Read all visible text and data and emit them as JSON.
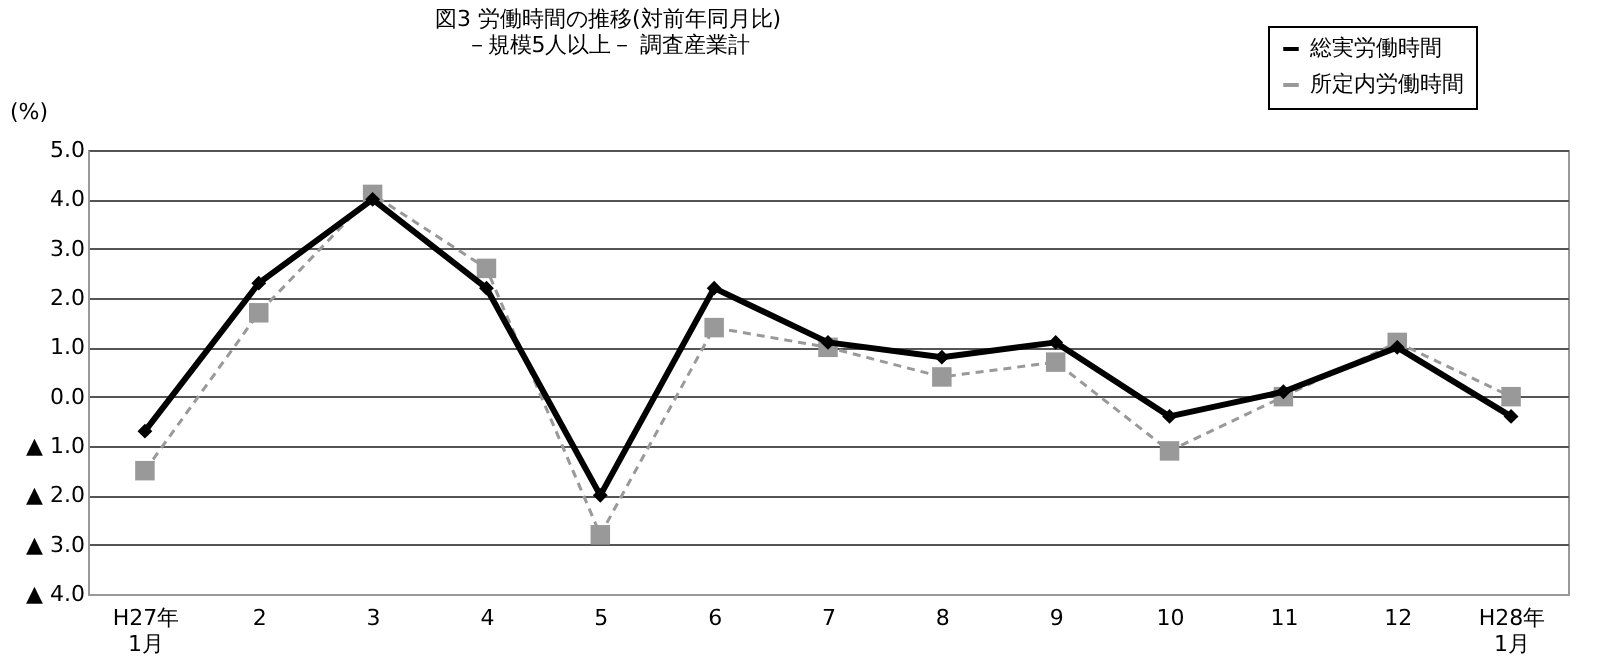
{
  "chart_data": {
    "type": "line",
    "title": "図3 労働時間の推移(対前年同月比)",
    "subtitle": "－規模5人以上－ 調査産業計",
    "ylabel": "(%)",
    "categories": [
      "H27年\n1月",
      "2",
      "3",
      "4",
      "5",
      "6",
      "7",
      "8",
      "9",
      "10",
      "11",
      "12",
      "H28年\n1月"
    ],
    "series": [
      {
        "name": "総実労働時間",
        "color": "#000000",
        "marker": "diamond",
        "line_style": "solid",
        "values": [
          -0.7,
          2.3,
          4.0,
          2.2,
          -2.0,
          2.2,
          1.1,
          0.8,
          1.1,
          -0.4,
          0.1,
          1.0,
          -0.4
        ]
      },
      {
        "name": "所定内労働時間",
        "color": "#999999",
        "marker": "square",
        "line_style": "dashed",
        "values": [
          -1.5,
          1.7,
          4.1,
          2.6,
          -2.8,
          1.4,
          1.0,
          0.4,
          0.7,
          -1.1,
          0.0,
          1.1,
          0.0
        ]
      }
    ],
    "ylim": [
      -4,
      5
    ],
    "yticks": [
      {
        "value": 5,
        "label": "5.0"
      },
      {
        "value": 4,
        "label": "4.0"
      },
      {
        "value": 3,
        "label": "3.0"
      },
      {
        "value": 2,
        "label": "2.0"
      },
      {
        "value": 1,
        "label": "1.0"
      },
      {
        "value": 0,
        "label": "0.0"
      },
      {
        "value": -1,
        "label": "▲ 1.0"
      },
      {
        "value": -2,
        "label": "▲ 2.0"
      },
      {
        "value": -3,
        "label": "▲ 3.0"
      },
      {
        "value": -4,
        "label": "▲ 4.0"
      }
    ],
    "grid": "y",
    "legend": "top right"
  }
}
